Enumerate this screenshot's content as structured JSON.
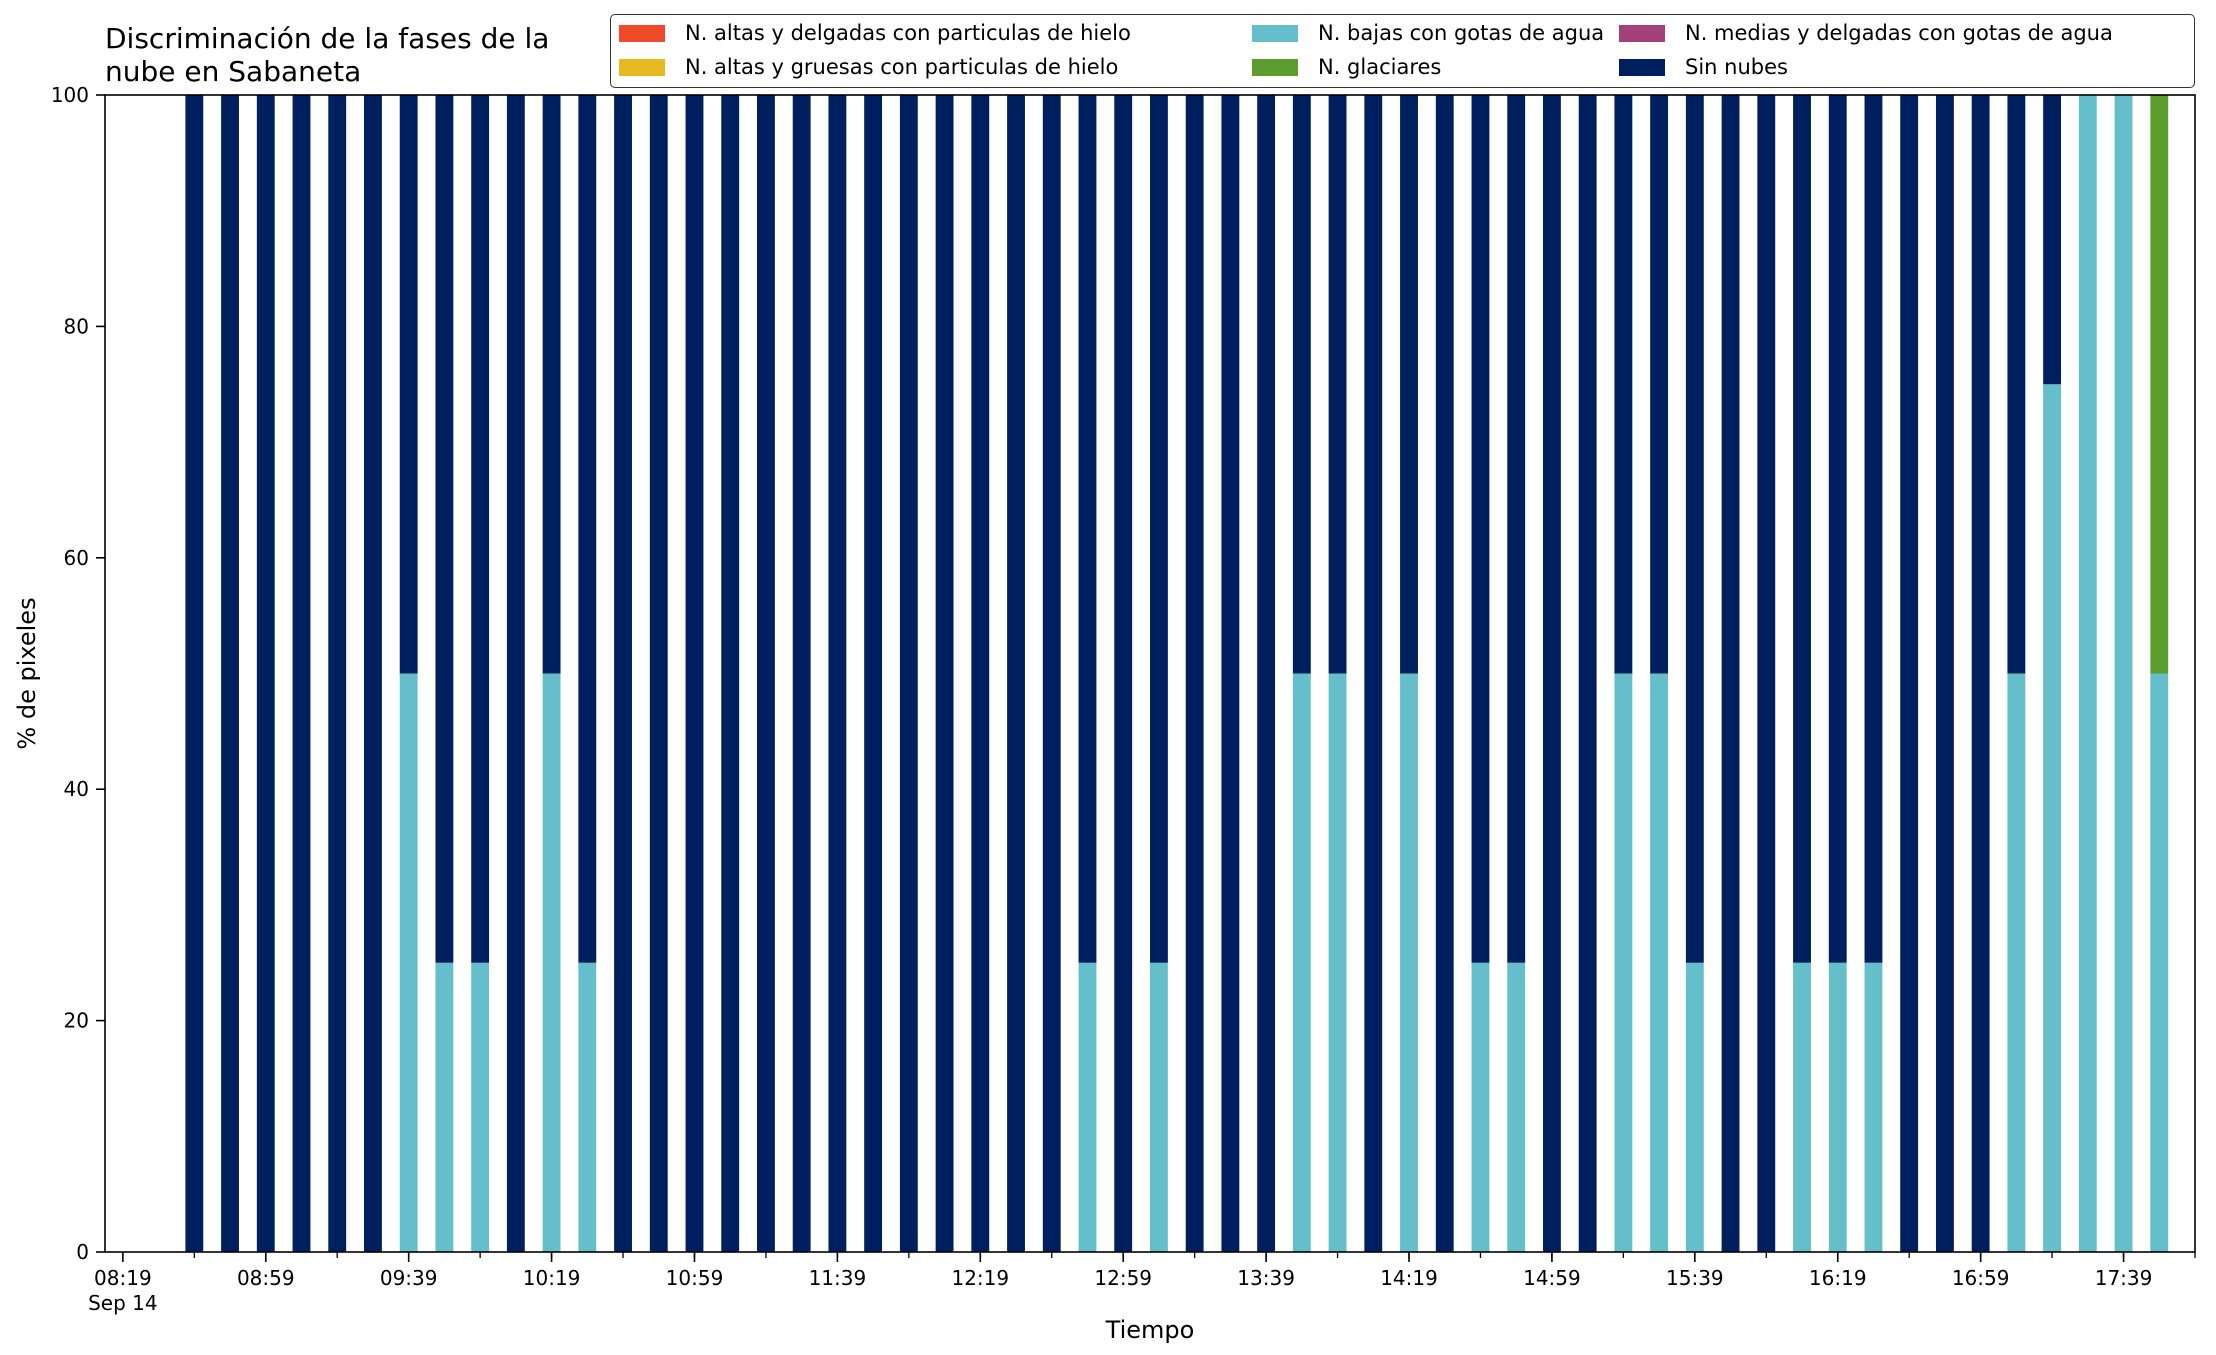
{
  "chart_data": {
    "type": "bar",
    "stacked": true,
    "title": "Discriminación de la fases de la nube en Sabaneta",
    "title_lines": [
      "Discriminación de la fases de la",
      "nube en Sabaneta"
    ],
    "xlabel": "Tiempo",
    "ylabel": "% de pixeles",
    "ylim": [
      0,
      100
    ],
    "yticks": [
      0,
      20,
      40,
      60,
      80,
      100
    ],
    "xlim": [
      "08:14",
      "17:59"
    ],
    "date_label": "Sep 14",
    "xticks_major": [
      "08:19",
      "08:59",
      "09:39",
      "10:19",
      "10:59",
      "11:39",
      "12:19",
      "12:59",
      "13:39",
      "14:19",
      "14:59",
      "15:39",
      "16:19",
      "16:59",
      "17:39"
    ],
    "legend_position": "top-right",
    "grid": false,
    "x": [
      "08:39",
      "08:49",
      "08:59",
      "09:09",
      "09:19",
      "09:29",
      "09:39",
      "09:49",
      "09:59",
      "10:09",
      "10:19",
      "10:29",
      "10:39",
      "10:49",
      "10:59",
      "11:09",
      "11:19",
      "11:29",
      "11:39",
      "11:49",
      "11:59",
      "12:09",
      "12:19",
      "12:29",
      "12:39",
      "12:49",
      "12:59",
      "13:09",
      "13:19",
      "13:29",
      "13:39",
      "13:49",
      "13:59",
      "14:09",
      "14:19",
      "14:29",
      "14:39",
      "14:49",
      "14:59",
      "15:09",
      "15:19",
      "15:29",
      "15:39",
      "15:49",
      "15:59",
      "16:09",
      "16:19",
      "16:29",
      "16:39",
      "16:49",
      "16:59",
      "17:09",
      "17:19",
      "17:29",
      "17:39",
      "17:49"
    ],
    "series": [
      {
        "name": "N. altas y delgadas con particulas de hielo",
        "color": "#f04a2b",
        "values": [
          0,
          0,
          0,
          0,
          0,
          0,
          0,
          0,
          0,
          0,
          0,
          0,
          0,
          0,
          0,
          0,
          0,
          0,
          0,
          0,
          0,
          0,
          0,
          0,
          0,
          0,
          0,
          0,
          0,
          0,
          0,
          0,
          0,
          0,
          0,
          0,
          0,
          0,
          0,
          0,
          0,
          0,
          0,
          0,
          0,
          0,
          0,
          0,
          0,
          0,
          0,
          0,
          0,
          0,
          0,
          0
        ]
      },
      {
        "name": "N. altas y gruesas con particulas de hielo",
        "color": "#e6b91e",
        "values": [
          0,
          0,
          0,
          0,
          0,
          0,
          0,
          0,
          0,
          0,
          0,
          0,
          0,
          0,
          0,
          0,
          0,
          0,
          0,
          0,
          0,
          0,
          0,
          0,
          0,
          0,
          0,
          0,
          0,
          0,
          0,
          0,
          0,
          0,
          0,
          0,
          0,
          0,
          0,
          0,
          0,
          0,
          0,
          0,
          0,
          0,
          0,
          0,
          0,
          0,
          0,
          0,
          0,
          0,
          0,
          0
        ]
      },
      {
        "name": "N. bajas con gotas de agua",
        "color": "#64bfca",
        "values": [
          0,
          0,
          0,
          0,
          0,
          0,
          50,
          25,
          25,
          0,
          50,
          25,
          0,
          0,
          0,
          0,
          0,
          0,
          0,
          0,
          0,
          0,
          0,
          0,
          0,
          25,
          0,
          25,
          0,
          0,
          0,
          50,
          50,
          0,
          50,
          0,
          25,
          25,
          0,
          0,
          50,
          50,
          25,
          0,
          0,
          25,
          25,
          25,
          0,
          0,
          0,
          50,
          75,
          100,
          100,
          50
        ]
      },
      {
        "name": "N. glaciares",
        "color": "#5c9e2e",
        "values": [
          0,
          0,
          0,
          0,
          0,
          0,
          0,
          0,
          0,
          0,
          0,
          0,
          0,
          0,
          0,
          0,
          0,
          0,
          0,
          0,
          0,
          0,
          0,
          0,
          0,
          0,
          0,
          0,
          0,
          0,
          0,
          0,
          0,
          0,
          0,
          0,
          0,
          0,
          0,
          0,
          0,
          0,
          0,
          0,
          0,
          0,
          0,
          0,
          0,
          0,
          0,
          0,
          0,
          0,
          0,
          50
        ]
      },
      {
        "name": "N. medias y delgadas con gotas de agua",
        "color": "#a4407a",
        "values": [
          0,
          0,
          0,
          0,
          0,
          0,
          0,
          0,
          0,
          0,
          0,
          0,
          0,
          0,
          0,
          0,
          0,
          0,
          0,
          0,
          0,
          0,
          0,
          0,
          0,
          0,
          0,
          0,
          0,
          0,
          0,
          0,
          0,
          0,
          0,
          0,
          0,
          0,
          0,
          0,
          0,
          0,
          0,
          0,
          0,
          0,
          0,
          0,
          0,
          0,
          0,
          0,
          0,
          0,
          0,
          0
        ]
      },
      {
        "name": "Sin nubes",
        "color": "#001f5e",
        "values": [
          100,
          100,
          100,
          100,
          100,
          100,
          50,
          75,
          75,
          100,
          50,
          75,
          100,
          100,
          100,
          100,
          100,
          100,
          100,
          100,
          100,
          100,
          100,
          100,
          100,
          75,
          100,
          75,
          100,
          100,
          100,
          50,
          50,
          100,
          50,
          100,
          75,
          75,
          100,
          100,
          50,
          50,
          75,
          100,
          100,
          75,
          75,
          75,
          100,
          100,
          100,
          50,
          25,
          0,
          0,
          0
        ]
      }
    ],
    "stack_order": [
      "N. bajas con gotas de agua",
      "N. glaciares",
      "Sin nubes",
      "N. altas y delgadas con particulas de hielo",
      "N. altas y gruesas con particulas de hielo",
      "N. medias y delgadas con gotas de agua"
    ],
    "legend_order": [
      "N. altas y delgadas con particulas de hielo",
      "N. altas y gruesas con particulas de hielo",
      "N. bajas con gotas de agua",
      "N. glaciares",
      "N. medias y delgadas con gotas de agua",
      "Sin nubes"
    ]
  }
}
